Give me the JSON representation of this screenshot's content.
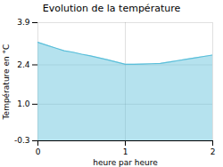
{
  "chart_data": {
    "type": "area",
    "title": "Evolution de la température",
    "xlabel": "heure par heure",
    "ylabel": "Température en °C",
    "x": [
      0,
      0.1,
      0.2,
      0.3,
      0.4,
      0.5,
      0.6,
      0.7,
      0.8,
      0.9,
      1.0,
      1.1,
      1.2,
      1.3,
      1.4,
      1.5,
      1.6,
      1.7,
      1.8,
      1.9,
      2.0
    ],
    "values": [
      3.2,
      3.1,
      3.0,
      2.9,
      2.85,
      2.78,
      2.72,
      2.65,
      2.58,
      2.5,
      2.42,
      2.42,
      2.43,
      2.44,
      2.45,
      2.5,
      2.55,
      2.6,
      2.65,
      2.7,
      2.75
    ],
    "color": "#5bbfda",
    "xlim": [
      0,
      2
    ],
    "ylim": [
      -0.3,
      3.9
    ],
    "xticks": [
      0,
      1,
      2
    ],
    "yticks": [
      -0.3,
      {
        "value": 1.0,
        "label": "1.0"
      },
      2.4,
      3.9
    ],
    "grid": true
  }
}
